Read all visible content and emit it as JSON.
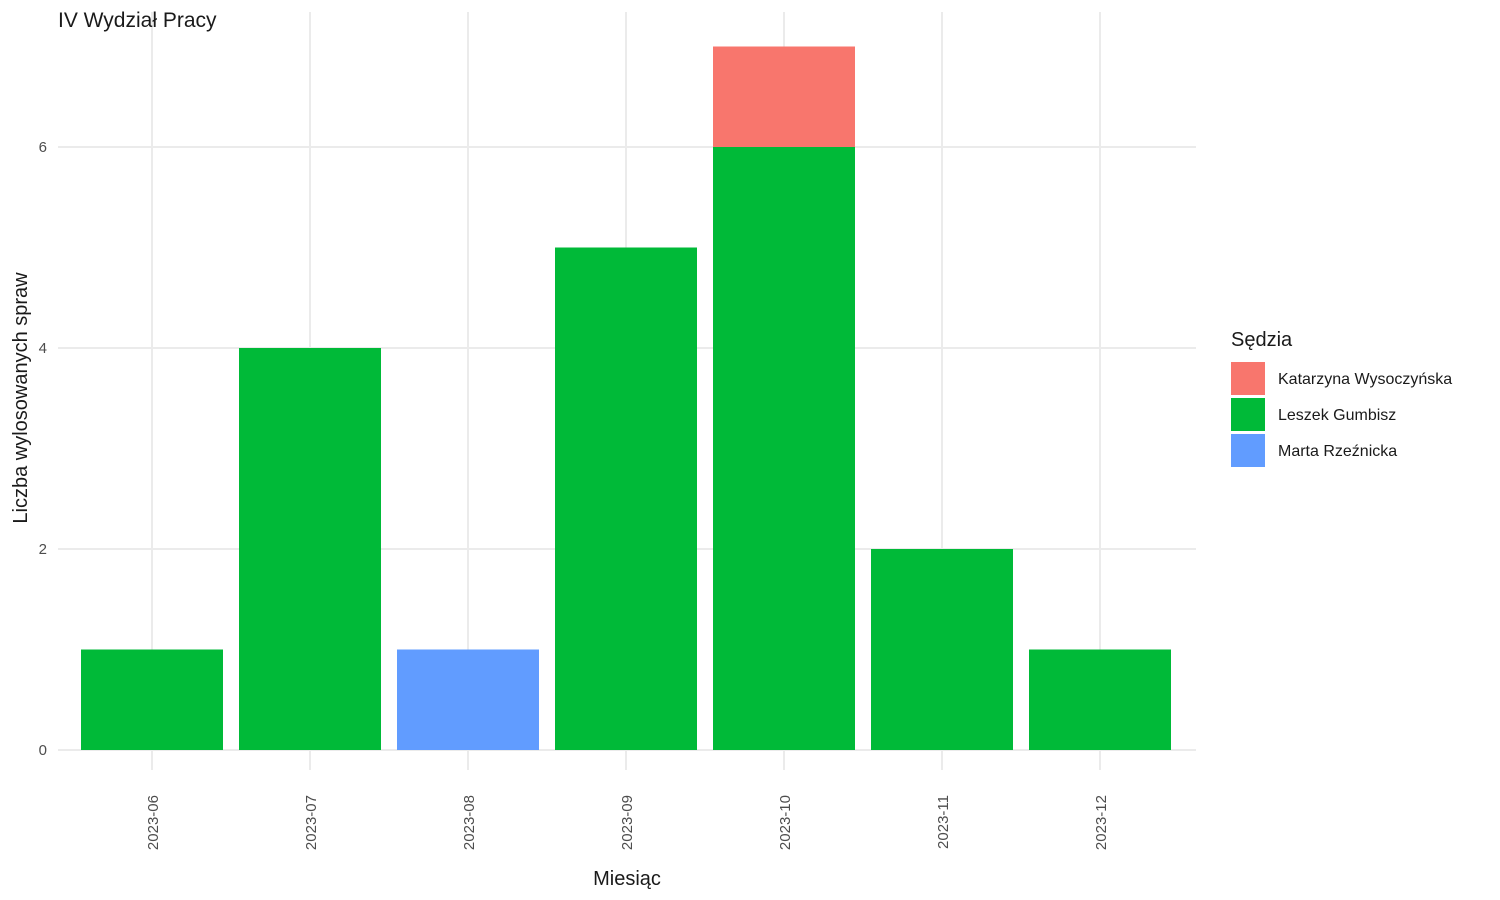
{
  "chart_data": {
    "type": "bar",
    "stacked": true,
    "title": "IV Wydział Pracy",
    "xlabel": "Miesiąc",
    "ylabel": "Liczba wylosowanych spraw",
    "categories": [
      "2023-06",
      "2023-07",
      "2023-08",
      "2023-09",
      "2023-10",
      "2023-11",
      "2023-12"
    ],
    "ylim": [
      0,
      7
    ],
    "yticks": [
      0,
      2,
      4,
      6
    ],
    "grid": true,
    "legend": {
      "title": "Sędzia",
      "position": "right"
    },
    "series": [
      {
        "name": "Katarzyna Wysoczyńska",
        "color": "#F8766D",
        "values": [
          0,
          0,
          0,
          0,
          1,
          0,
          0
        ]
      },
      {
        "name": "Leszek Gumbisz",
        "color": "#00BA38",
        "values": [
          1,
          4,
          0,
          5,
          6,
          2,
          1
        ]
      },
      {
        "name": "Marta Rzeźnicka",
        "color": "#619CFF",
        "values": [
          0,
          0,
          1,
          0,
          0,
          0,
          0
        ]
      }
    ]
  }
}
